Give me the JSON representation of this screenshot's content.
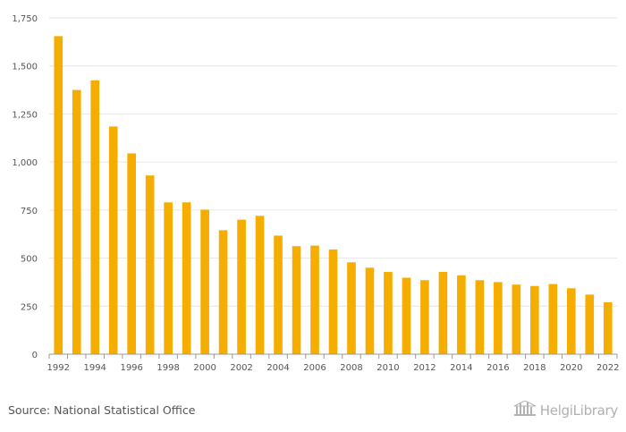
{
  "chart_data": {
    "type": "bar",
    "title": "",
    "xlabel": "",
    "ylabel": "",
    "categories": [
      1992,
      1993,
      1994,
      1995,
      1996,
      1997,
      1998,
      1999,
      2000,
      2001,
      2002,
      2003,
      2004,
      2005,
      2006,
      2007,
      2008,
      2009,
      2010,
      2011,
      2012,
      2013,
      2014,
      2015,
      2016,
      2017,
      2018,
      2019,
      2020,
      2021,
      2022
    ],
    "values": [
      1655,
      1375,
      1425,
      1185,
      1045,
      930,
      790,
      790,
      752,
      645,
      700,
      720,
      617,
      562,
      565,
      545,
      478,
      450,
      428,
      398,
      385,
      428,
      410,
      385,
      375,
      362,
      355,
      365,
      343,
      310,
      270
    ],
    "x_tick_labels": [
      "1992",
      "1994",
      "1996",
      "1998",
      "2000",
      "2002",
      "2004",
      "2006",
      "2008",
      "2010",
      "2012",
      "2014",
      "2016",
      "2018",
      "2020",
      "2022"
    ],
    "y_ticks": [
      0,
      250,
      500,
      750,
      1000,
      1250,
      1500,
      1750
    ],
    "y_tick_labels": [
      "0",
      "250",
      "500",
      "750",
      "1,000",
      "1,250",
      "1,500",
      "1,750"
    ],
    "ylim": [
      0,
      1750
    ],
    "grid": true,
    "bar_color": "#f5ad00"
  },
  "footer": {
    "source": "Source: National Statistical Office",
    "brand": "HelgiLibrary",
    "brand_icon": "library-building-icon"
  }
}
